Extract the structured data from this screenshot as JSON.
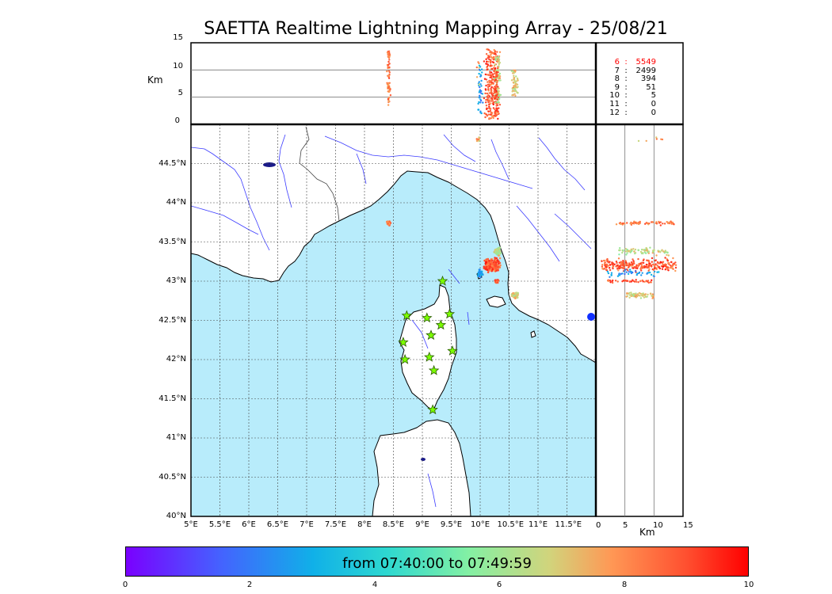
{
  "title": "SAETTA Realtime Lightning Mapping Array - 25/08/21",
  "top_panel": {
    "ylabel": "Km",
    "yticks": [
      "15",
      "10",
      "5",
      "0"
    ]
  },
  "side_panel": {
    "xlabel": "Km",
    "xticks": [
      "0",
      "5",
      "10",
      "15"
    ]
  },
  "map": {
    "lat_labels": [
      "44.5°N",
      "44°N",
      "43.5°N",
      "43°N",
      "42.5°N",
      "42°N",
      "41.5°N",
      "41°N",
      "40.5°N",
      "40°N"
    ],
    "lon_labels": [
      "5°E",
      "5.5°E",
      "6°E",
      "6.5°E",
      "7°E",
      "7.5°E",
      "8°E",
      "8.5°E",
      "9°E",
      "9.5°E",
      "10°E",
      "10.5°E",
      "11°E",
      "11.5°E"
    ],
    "extent": {
      "lon": [
        5.0,
        12.0
      ],
      "lat": [
        40.0,
        45.0
      ]
    },
    "stations": [
      {
        "lon": 9.35,
        "lat": 43.0
      },
      {
        "lon": 8.73,
        "lat": 42.56
      },
      {
        "lon": 9.08,
        "lat": 42.53
      },
      {
        "lon": 9.47,
        "lat": 42.58
      },
      {
        "lon": 9.32,
        "lat": 42.44
      },
      {
        "lon": 9.15,
        "lat": 42.31
      },
      {
        "lon": 8.67,
        "lat": 42.22
      },
      {
        "lon": 9.52,
        "lat": 42.11
      },
      {
        "lon": 9.12,
        "lat": 42.03
      },
      {
        "lon": 8.7,
        "lat": 42.0
      },
      {
        "lon": 9.2,
        "lat": 41.86
      },
      {
        "lon": 9.18,
        "lat": 41.36
      }
    ],
    "colors": {
      "sea": "#b8ecfb",
      "land": "#ffffff",
      "station": "#7cff00",
      "river": "#3b3bff"
    }
  },
  "counts": [
    {
      "level": "6",
      "value": "5549",
      "color": "#ff0000"
    },
    {
      "level": "7",
      "value": "2499",
      "color": "#000000"
    },
    {
      "level": "8",
      "value": "394",
      "color": "#000000"
    },
    {
      "level": "9",
      "value": "51",
      "color": "#000000"
    },
    {
      "level": "10",
      "value": "5",
      "color": "#000000"
    },
    {
      "level": "11",
      "value": "0",
      "color": "#000000"
    },
    {
      "level": "12",
      "value": "0",
      "color": "#000000"
    }
  ],
  "colorbar": {
    "label": "from 07:40:00 to 07:49:59",
    "ticks": [
      "0",
      "2",
      "4",
      "6",
      "8",
      "10"
    ],
    "range": [
      0,
      10
    ]
  },
  "clusters": [
    {
      "lon": 8.42,
      "lat": 43.74,
      "alt_min": 3.5,
      "alt_max": 13.5,
      "t": 8.3,
      "n": 70,
      "rx": 0.04,
      "ry": 0.03
    },
    {
      "lon": 10.2,
      "lat": 43.2,
      "alt_min": 1.0,
      "alt_max": 14.0,
      "t": 8.8,
      "n": 260,
      "rx": 0.18,
      "ry": 0.12
    },
    {
      "lon": 10.3,
      "lat": 43.38,
      "alt_min": 4.0,
      "alt_max": 13.0,
      "t": 6.5,
      "n": 80,
      "rx": 0.08,
      "ry": 0.06
    },
    {
      "lon": 10.28,
      "lat": 43.0,
      "alt_min": 2.0,
      "alt_max": 10.0,
      "t": 9.0,
      "n": 40,
      "rx": 0.05,
      "ry": 0.03
    },
    {
      "lon": 10.6,
      "lat": 42.82,
      "alt_min": 5.0,
      "alt_max": 10.0,
      "t": 7.0,
      "n": 60,
      "rx": 0.08,
      "ry": 0.05
    },
    {
      "lon": 10.0,
      "lat": 43.1,
      "alt_min": 2.0,
      "alt_max": 12.0,
      "t": 2.5,
      "n": 40,
      "rx": 0.06,
      "ry": 0.06
    },
    {
      "lon": 9.98,
      "lat": 44.8,
      "alt_min": 6.0,
      "alt_max": 12.0,
      "t": 7.5,
      "n": 6,
      "rx": 0.05,
      "ry": 0.05
    }
  ]
}
